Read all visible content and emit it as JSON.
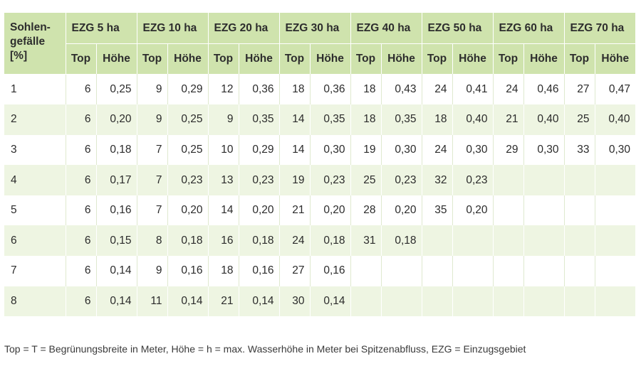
{
  "table": {
    "corner_lines": [
      "Sohlen-",
      "gefälle",
      "[%]"
    ],
    "groups": [
      "EZG 5 ha",
      "EZG 10 ha",
      "EZG 20 ha",
      "EZG 30 ha",
      "EZG 40 ha",
      "EZG 50 ha",
      "EZG 60 ha",
      "EZG 70 ha"
    ],
    "subheaders": [
      "Top",
      "Höhe"
    ],
    "rows": [
      [
        "1",
        "6",
        "0,25",
        "9",
        "0,29",
        "12",
        "0,36",
        "18",
        "0,36",
        "18",
        "0,43",
        "24",
        "0,41",
        "24",
        "0,46",
        "27",
        "0,47"
      ],
      [
        "2",
        "6",
        "0,20",
        "9",
        "0,25",
        "9",
        "0,35",
        "14",
        "0,35",
        "18",
        "0,35",
        "18",
        "0,40",
        "21",
        "0,40",
        "25",
        "0,40"
      ],
      [
        "3",
        "6",
        "0,18",
        "7",
        "0,25",
        "10",
        "0,29",
        "14",
        "0,30",
        "19",
        "0,30",
        "24",
        "0,30",
        "29",
        "0,30",
        "33",
        "0,30"
      ],
      [
        "4",
        "6",
        "0,17",
        "7",
        "0,23",
        "13",
        "0,23",
        "19",
        "0,23",
        "25",
        "0,23",
        "32",
        "0,23",
        "",
        "",
        "",
        ""
      ],
      [
        "5",
        "6",
        "0,16",
        "7",
        "0,20",
        "14",
        "0,20",
        "21",
        "0,20",
        "28",
        "0,20",
        "35",
        "0,20",
        "",
        "",
        "",
        ""
      ],
      [
        "6",
        "6",
        "0,15",
        "8",
        "0,18",
        "16",
        "0,18",
        "24",
        "0,18",
        "31",
        "0,18",
        "",
        "",
        "",
        "",
        "",
        ""
      ],
      [
        "7",
        "6",
        "0,14",
        "9",
        "0,16",
        "18",
        "0,16",
        "27",
        "0,16",
        "",
        "",
        "",
        "",
        "",
        "",
        "",
        ""
      ],
      [
        "8",
        "6",
        "0,14",
        "11",
        "0,14",
        "21",
        "0,14",
        "30",
        "0,14",
        "",
        "",
        "",
        "",
        "",
        "",
        "",
        ""
      ]
    ]
  },
  "footnote": "Top = T = Begrünungsbreite in Meter, Höhe = h = max. Wasserhöhe in Meter bei Spitzenabfluss, EZG = Einzugsgebiet",
  "colors": {
    "header_bg": "#cfe3ad",
    "stripe_bg": "#eef5e2"
  }
}
